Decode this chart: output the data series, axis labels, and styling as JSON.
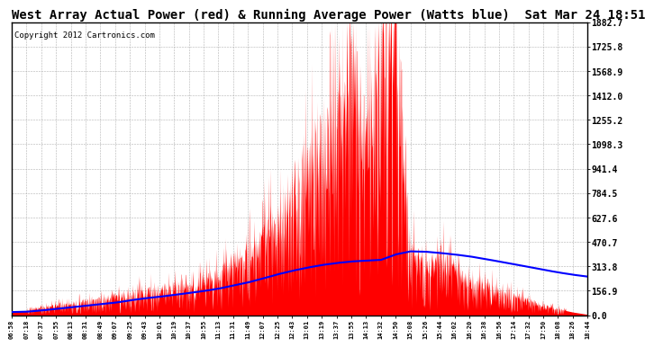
{
  "title": "West Array Actual Power (red) & Running Average Power (Watts blue)  Sat Mar 24 18:51",
  "copyright": "Copyright 2012 Cartronics.com",
  "bg_color": "#ffffff",
  "plot_bg_color": "#ffffff",
  "ymax": 1882.7,
  "ymin": 0.0,
  "yticks": [
    0.0,
    156.9,
    313.8,
    470.7,
    627.6,
    784.5,
    941.4,
    1098.3,
    1255.2,
    1412.0,
    1568.9,
    1725.8,
    1882.7
  ],
  "ytick_labels": [
    "0.0",
    "156.9",
    "313.8",
    "470.7",
    "627.6",
    "784.5",
    "941.4",
    "1098.3",
    "1255.2",
    "1412.0",
    "1568.9",
    "1725.8",
    "1882.7"
  ],
  "actual_color": "red",
  "avg_color": "blue",
  "title_fontsize": 10,
  "copyright_fontsize": 6.5,
  "axis_fontsize": 7,
  "xtick_labels": [
    "06:58",
    "07:18",
    "07:37",
    "07:55",
    "08:13",
    "08:31",
    "08:49",
    "09:07",
    "09:25",
    "09:43",
    "10:01",
    "10:19",
    "10:37",
    "10:55",
    "11:13",
    "11:31",
    "11:49",
    "12:07",
    "12:25",
    "12:43",
    "13:01",
    "13:19",
    "13:37",
    "13:55",
    "14:13",
    "14:32",
    "14:50",
    "15:08",
    "15:26",
    "15:44",
    "16:02",
    "16:20",
    "16:38",
    "16:56",
    "17:14",
    "17:32",
    "17:50",
    "18:08",
    "18:26",
    "18:44"
  ],
  "actual_values": [
    20,
    30,
    50,
    60,
    70,
    90,
    100,
    110,
    130,
    150,
    155,
    170,
    180,
    200,
    250,
    320,
    380,
    480,
    600,
    750,
    900,
    1050,
    1080,
    1480,
    1100,
    1882.7,
    1750,
    400,
    280,
    350,
    300,
    200,
    200,
    150,
    120,
    90,
    60,
    40,
    20,
    5
  ],
  "avg_values": [
    20,
    22,
    30,
    40,
    50,
    60,
    70,
    80,
    95,
    108,
    118,
    130,
    142,
    155,
    170,
    190,
    210,
    235,
    262,
    285,
    305,
    322,
    335,
    345,
    350,
    355,
    390,
    410,
    408,
    400,
    390,
    378,
    362,
    345,
    328,
    310,
    292,
    275,
    260,
    248
  ]
}
